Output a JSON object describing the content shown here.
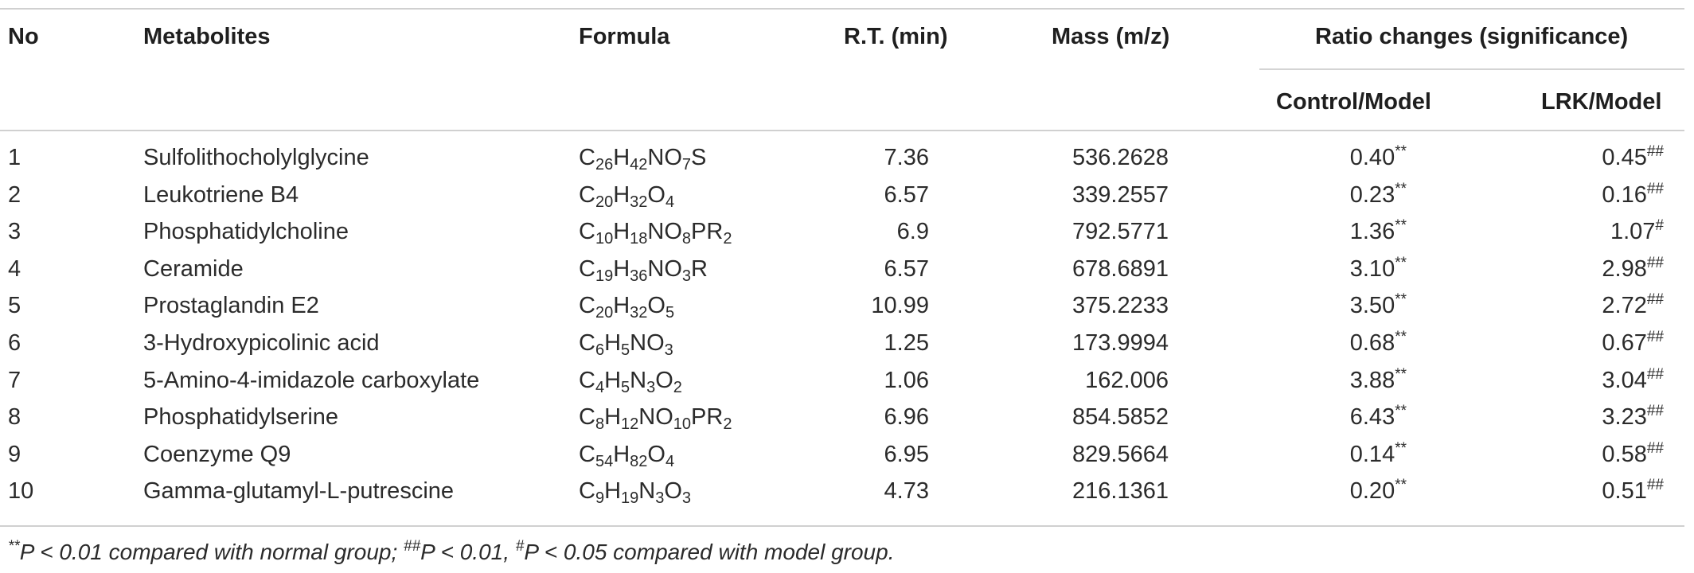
{
  "headers": {
    "no": "No",
    "metabolites": "Metabolites",
    "formula": "Formula",
    "rt": "R.T. (min)",
    "mass": "Mass (m/z)",
    "ratio": "Ratio changes (significance)",
    "control_model": "Control/Model",
    "lrk_model": "LRK/Model"
  },
  "rows": [
    {
      "no": "1",
      "name": "Sulfolithocholylglycine",
      "formula": [
        [
          "C",
          ""
        ],
        [
          "26",
          "s"
        ],
        [
          "H",
          ""
        ],
        [
          "42",
          "s"
        ],
        [
          "NO",
          ""
        ],
        [
          "7",
          "s"
        ],
        [
          "S",
          ""
        ]
      ],
      "rt": "7.36",
      "mass": "536.2628",
      "cm": "0.40",
      "cm_sig": "**",
      "lm": "0.45",
      "lm_sig": "##"
    },
    {
      "no": "2",
      "name": "Leukotriene B4",
      "formula": [
        [
          "C",
          ""
        ],
        [
          "20",
          "s"
        ],
        [
          "H",
          ""
        ],
        [
          "32",
          "s"
        ],
        [
          "O",
          ""
        ],
        [
          "4",
          "s"
        ]
      ],
      "rt": "6.57",
      "mass": "339.2557",
      "cm": "0.23",
      "cm_sig": "**",
      "lm": "0.16",
      "lm_sig": "##"
    },
    {
      "no": "3",
      "name": "Phosphatidylcholine",
      "formula": [
        [
          "C",
          ""
        ],
        [
          "10",
          "s"
        ],
        [
          "H",
          ""
        ],
        [
          "18",
          "s"
        ],
        [
          "NO",
          ""
        ],
        [
          "8",
          "s"
        ],
        [
          "PR",
          ""
        ],
        [
          "2",
          "s"
        ]
      ],
      "rt": "6.9",
      "mass": "792.5771",
      "cm": "1.36",
      "cm_sig": "**",
      "lm": "1.07",
      "lm_sig": "#"
    },
    {
      "no": "4",
      "name": "Ceramide",
      "formula": [
        [
          "C",
          ""
        ],
        [
          "19",
          "s"
        ],
        [
          "H",
          ""
        ],
        [
          "36",
          "s"
        ],
        [
          "NO",
          ""
        ],
        [
          "3",
          "s"
        ],
        [
          "R",
          ""
        ]
      ],
      "rt": "6.57",
      "mass": "678.6891",
      "cm": "3.10",
      "cm_sig": "**",
      "lm": "2.98",
      "lm_sig": "##"
    },
    {
      "no": "5",
      "name": "Prostaglandin E2",
      "formula": [
        [
          "C",
          ""
        ],
        [
          "20",
          "s"
        ],
        [
          "H",
          ""
        ],
        [
          "32",
          "s"
        ],
        [
          "O",
          ""
        ],
        [
          "5",
          "s"
        ]
      ],
      "rt": "10.99",
      "mass": "375.2233",
      "cm": "3.50",
      "cm_sig": "**",
      "lm": "2.72",
      "lm_sig": "##"
    },
    {
      "no": "6",
      "name": "3-Hydroxypicolinic acid",
      "formula": [
        [
          "C",
          ""
        ],
        [
          "6",
          "s"
        ],
        [
          "H",
          ""
        ],
        [
          "5",
          "s"
        ],
        [
          "NO",
          ""
        ],
        [
          "3",
          "s"
        ]
      ],
      "rt": "1.25",
      "mass": "173.9994",
      "cm": "0.68",
      "cm_sig": "**",
      "lm": "0.67",
      "lm_sig": "##"
    },
    {
      "no": "7",
      "name": "5-Amino-4-imidazole carboxylate",
      "formula": [
        [
          "C",
          ""
        ],
        [
          "4",
          "s"
        ],
        [
          "H",
          ""
        ],
        [
          "5",
          "s"
        ],
        [
          "N",
          ""
        ],
        [
          "3",
          "s"
        ],
        [
          "O",
          ""
        ],
        [
          "2",
          "s"
        ]
      ],
      "rt": "1.06",
      "mass": "162.006",
      "cm": "3.88",
      "cm_sig": "**",
      "lm": "3.04",
      "lm_sig": "##"
    },
    {
      "no": "8",
      "name": "Phosphatidylserine",
      "formula": [
        [
          "C",
          ""
        ],
        [
          "8",
          "s"
        ],
        [
          "H",
          ""
        ],
        [
          "12",
          "s"
        ],
        [
          "NO",
          ""
        ],
        [
          "10",
          "s"
        ],
        [
          "PR",
          ""
        ],
        [
          "2",
          "s"
        ]
      ],
      "rt": "6.96",
      "mass": "854.5852",
      "cm": "6.43",
      "cm_sig": "**",
      "lm": "3.23",
      "lm_sig": "##"
    },
    {
      "no": "9",
      "name": "Coenzyme Q9",
      "formula": [
        [
          "C",
          ""
        ],
        [
          "54",
          "s"
        ],
        [
          "H",
          ""
        ],
        [
          "82",
          "s"
        ],
        [
          "O",
          ""
        ],
        [
          "4",
          "s"
        ]
      ],
      "rt": "6.95",
      "mass": "829.5664",
      "cm": "0.14",
      "cm_sig": "**",
      "lm": "0.58",
      "lm_sig": "##"
    },
    {
      "no": "10",
      "name": "Gamma-glutamyl-L-putrescine",
      "formula": [
        [
          "C",
          ""
        ],
        [
          "9",
          "s"
        ],
        [
          "H",
          ""
        ],
        [
          "19",
          "s"
        ],
        [
          "N",
          ""
        ],
        [
          "3",
          "s"
        ],
        [
          "O",
          ""
        ],
        [
          "3",
          "s"
        ]
      ],
      "rt": "4.73",
      "mass": "216.1361",
      "cm": "0.20",
      "cm_sig": "**",
      "lm": "0.51",
      "lm_sig": "##"
    }
  ],
  "footnote": {
    "mark1": "**",
    "text1": "P < 0.01 compared with normal group; ",
    "mark2": "##",
    "text2": "P < 0.01, ",
    "mark3": "#",
    "text3": "P < 0.05 compared with model group."
  }
}
